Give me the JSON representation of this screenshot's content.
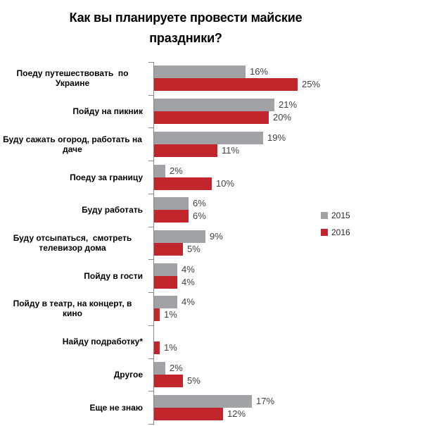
{
  "page": {
    "background": "#ffffff"
  },
  "chart_data": {
    "type": "bar",
    "orientation": "horizontal",
    "title": "Как вы планируете провести майские праздники?",
    "title_lines": [
      "Как вы планируете провести майские",
      "праздники?"
    ],
    "categories": [
      "Поеду путешествовать  по Украине",
      "Пойду на пикник",
      "Буду сажать огород, работать на даче",
      "Поеду за границу",
      "Буду работать",
      "Буду отсыпаться,  смотреть телевизор дома",
      "Пойду в гости",
      "Пойду в театр, на концерт, в кино",
      "Найду подработку*",
      "Другое",
      "Еще не знаю"
    ],
    "series": [
      {
        "name": "2015",
        "color": "#A1A2A5",
        "values": [
          16,
          21,
          19,
          2,
          6,
          9,
          4,
          4,
          null,
          2,
          17
        ],
        "value_labels": [
          "16%",
          "21%",
          "19%",
          "2%",
          "6%",
          "9%",
          "4%",
          "4%",
          null,
          "2%",
          "17%"
        ]
      },
      {
        "name": "2016",
        "color": "#C2262C",
        "values": [
          25,
          20,
          11,
          10,
          6,
          5,
          4,
          1,
          1,
          5,
          12
        ],
        "value_labels": [
          "25%",
          "20%",
          "11%",
          "10%",
          "6%",
          "5%",
          "4%",
          "1%",
          "1%",
          "5%",
          "12%"
        ]
      }
    ],
    "value_unit": "%",
    "xlim": [
      0,
      26
    ],
    "grid": false,
    "legend_position": "right-middle",
    "axis_color": "#898989",
    "value_label_color": "#404040",
    "category_label_color": "#000000",
    "title_color": "#000000"
  }
}
